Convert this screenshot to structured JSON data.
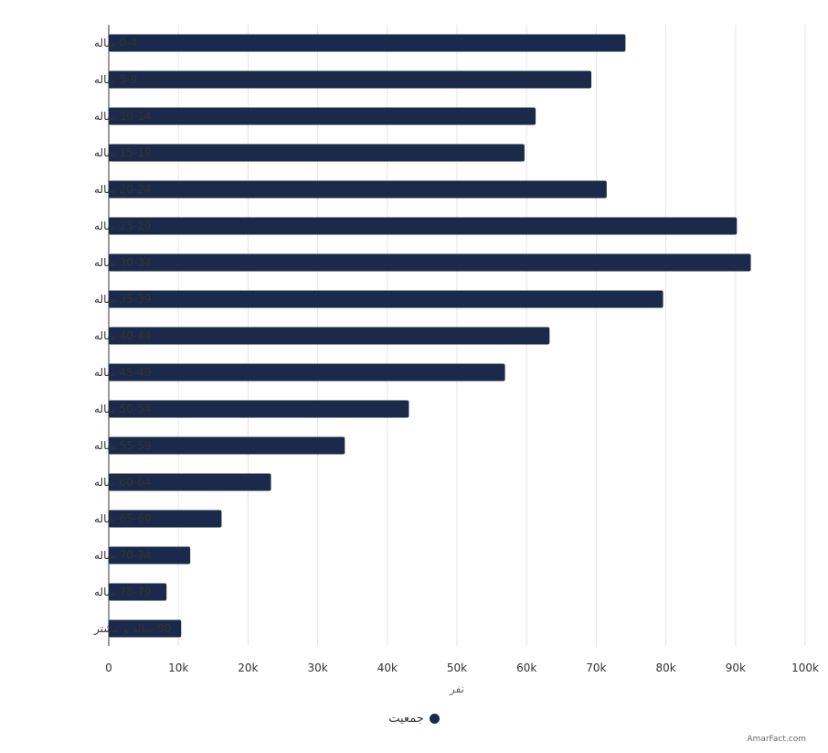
{
  "chart_data": {
    "type": "bar",
    "orientation": "horizontal",
    "categories": [
      "0-4 ساله",
      "5-9 ساله",
      "10-14 ساله",
      "15-19 ساله",
      "20-24 ساله",
      "25-29 ساله",
      "30-34 ساله",
      "35-39 ساله",
      "40-44 ساله",
      "45-49 ساله",
      "50-54 ساله",
      "55-59 ساله",
      "60-64 ساله",
      "65-69 ساله",
      "70-74 ساله",
      "75-79 ساله",
      "80 ساله و بیشتر"
    ],
    "series": [
      {
        "name": "جمعیت",
        "color": "#1b2a4a",
        "values": [
          74200,
          69300,
          61300,
          59700,
          71500,
          90200,
          92200,
          79600,
          63300,
          56900,
          43100,
          33900,
          23300,
          16200,
          11700,
          8300,
          10400
        ]
      }
    ],
    "xlabel": "نفر",
    "xlim": [
      0,
      100000
    ],
    "xticks": [
      "0",
      "10k",
      "20k",
      "30k",
      "40k",
      "50k",
      "60k",
      "70k",
      "80k",
      "90k",
      "100k"
    ],
    "grid": true,
    "legend_position": "bottom-center"
  },
  "legend": {
    "label": "جمعیت",
    "color": "#1b2a4a"
  },
  "credit": "AmarFact.com"
}
